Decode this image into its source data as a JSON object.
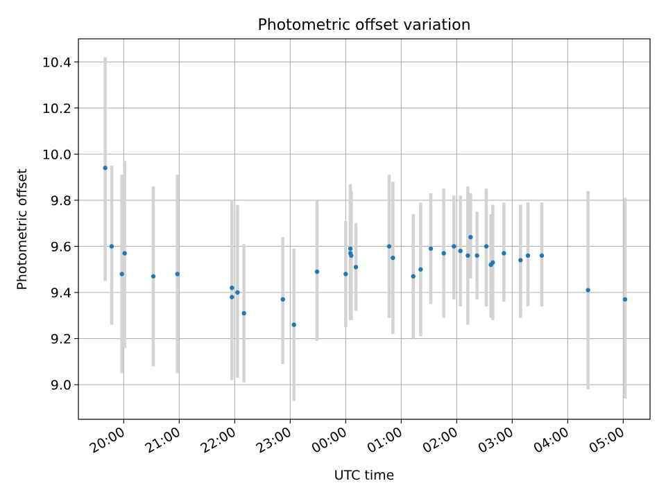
{
  "chart_data": {
    "type": "scatter",
    "title": "Photometric offset variation",
    "xlabel": "UTC time",
    "ylabel": "Photometric offset",
    "xlim": [
      "19:11",
      "05:29"
    ],
    "ylim": [
      8.85,
      10.5
    ],
    "xticks": [
      "20:00",
      "21:00",
      "22:00",
      "23:00",
      "00:00",
      "01:00",
      "02:00",
      "03:00",
      "04:00",
      "05:00"
    ],
    "yticks": [
      "9.0",
      "9.2",
      "9.4",
      "9.6",
      "9.8",
      "10.0",
      "10.2",
      "10.4"
    ],
    "grid": true,
    "colors": {
      "point": "#1f77b4",
      "errorbar": "#d3d3d3",
      "grid": "#b0b0b0",
      "axes": "#000000"
    },
    "series": [
      {
        "points": [
          {
            "x": "19:40",
            "y": 9.94,
            "low": 9.45,
            "high": 10.42
          },
          {
            "x": "19:47",
            "y": 9.6,
            "low": 9.26,
            "high": 9.95
          },
          {
            "x": "19:58",
            "y": 9.48,
            "low": 9.05,
            "high": 9.91
          },
          {
            "x": "20:01",
            "y": 9.57,
            "low": 9.16,
            "high": 9.97
          },
          {
            "x": "20:32",
            "y": 9.47,
            "low": 9.08,
            "high": 9.86
          },
          {
            "x": "20:58",
            "y": 9.48,
            "low": 9.05,
            "high": 9.91
          },
          {
            "x": "21:57",
            "y": 9.42,
            "low": 9.03,
            "high": 9.8
          },
          {
            "x": "21:57",
            "y": 9.38,
            "low": 9.02,
            "high": 9.74
          },
          {
            "x": "22:03",
            "y": 9.4,
            "low": 9.03,
            "high": 9.78
          },
          {
            "x": "22:10",
            "y": 9.31,
            "low": 9.01,
            "high": 9.61
          },
          {
            "x": "22:52",
            "y": 9.37,
            "low": 9.09,
            "high": 9.64
          },
          {
            "x": "23:04",
            "y": 9.26,
            "low": 8.93,
            "high": 9.59
          },
          {
            "x": "23:29",
            "y": 9.49,
            "low": 9.19,
            "high": 9.8
          },
          {
            "x": "00:00",
            "y": 9.48,
            "low": 9.25,
            "high": 9.71
          },
          {
            "x": "00:05",
            "y": 9.59,
            "low": 9.31,
            "high": 9.87
          },
          {
            "x": "00:05",
            "y": 9.57,
            "low": 9.28,
            "high": 9.86
          },
          {
            "x": "00:06",
            "y": 9.56,
            "low": 9.28,
            "high": 9.84
          },
          {
            "x": "00:11",
            "y": 9.51,
            "low": 9.32,
            "high": 9.7
          },
          {
            "x": "00:47",
            "y": 9.6,
            "low": 9.29,
            "high": 9.91
          },
          {
            "x": "00:51",
            "y": 9.55,
            "low": 9.22,
            "high": 9.88
          },
          {
            "x": "01:13",
            "y": 9.47,
            "low": 9.2,
            "high": 9.74
          },
          {
            "x": "01:21",
            "y": 9.5,
            "low": 9.21,
            "high": 9.79
          },
          {
            "x": "01:32",
            "y": 9.59,
            "low": 9.35,
            "high": 9.83
          },
          {
            "x": "01:46",
            "y": 9.57,
            "low": 9.29,
            "high": 9.85
          },
          {
            "x": "01:57",
            "y": 9.6,
            "low": 9.37,
            "high": 9.82
          },
          {
            "x": "02:04",
            "y": 9.58,
            "low": 9.34,
            "high": 9.82
          },
          {
            "x": "02:12",
            "y": 9.56,
            "low": 9.26,
            "high": 9.86
          },
          {
            "x": "02:15",
            "y": 9.64,
            "low": 9.46,
            "high": 9.83
          },
          {
            "x": "02:22",
            "y": 9.56,
            "low": 9.37,
            "high": 9.75
          },
          {
            "x": "02:32",
            "y": 9.6,
            "low": 9.34,
            "high": 9.85
          },
          {
            "x": "02:37",
            "y": 9.52,
            "low": 9.29,
            "high": 9.74
          },
          {
            "x": "02:39",
            "y": 9.53,
            "low": 9.28,
            "high": 9.78
          },
          {
            "x": "02:51",
            "y": 9.57,
            "low": 9.36,
            "high": 9.79
          },
          {
            "x": "03:09",
            "y": 9.54,
            "low": 9.29,
            "high": 9.78
          },
          {
            "x": "03:17",
            "y": 9.56,
            "low": 9.34,
            "high": 9.79
          },
          {
            "x": "03:32",
            "y": 9.56,
            "low": 9.34,
            "high": 9.79
          },
          {
            "x": "04:22",
            "y": 9.41,
            "low": 8.98,
            "high": 9.84
          },
          {
            "x": "05:02",
            "y": 9.37,
            "low": 8.94,
            "high": 9.81
          }
        ]
      }
    ]
  }
}
